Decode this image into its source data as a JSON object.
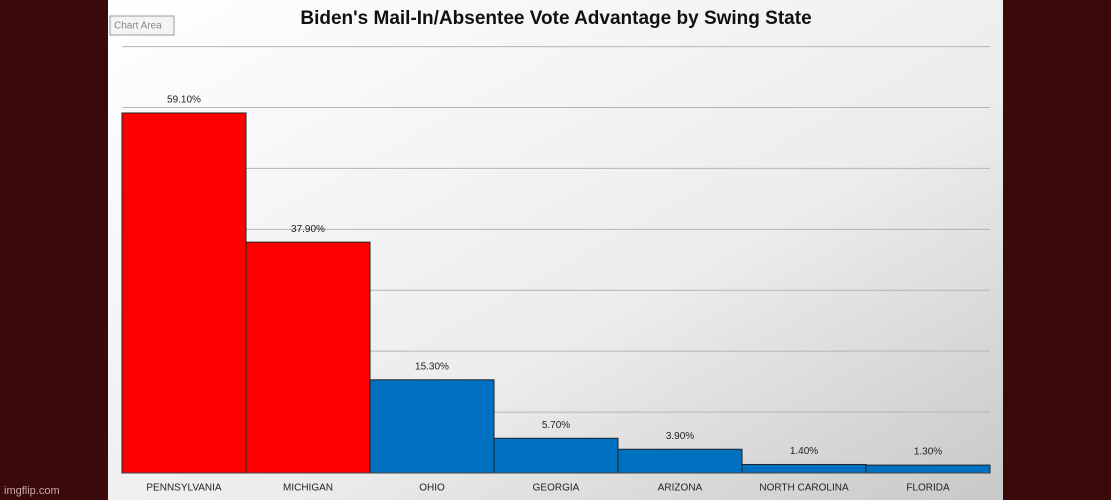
{
  "chart_data": {
    "type": "bar",
    "title": "Biden's Mail-In/Absentee Vote Advantage by Swing State",
    "categories": [
      "PENNSYLVANIA",
      "MICHIGAN",
      "OHIO",
      "GEORGIA",
      "ARIZONA",
      "NORTH CAROLINA",
      "FLORIDA"
    ],
    "values": [
      59.1,
      37.9,
      15.3,
      5.7,
      3.9,
      1.4,
      1.3
    ],
    "value_labels": [
      "59.10%",
      "37.90%",
      "15.30%",
      "5.70%",
      "3.90%",
      "1.40%",
      "1.30%"
    ],
    "colors": [
      "#ff0000",
      "#ff0000",
      "#0070c0",
      "#0070c0",
      "#0070c0",
      "#0070c0",
      "#0070c0"
    ],
    "ylim": [
      0,
      70
    ],
    "yticks": [
      0,
      10,
      20,
      30,
      40,
      50,
      60,
      70
    ],
    "grid": true
  },
  "ui": {
    "tooltip": "Chart Area",
    "watermark": "imgflip.com"
  }
}
